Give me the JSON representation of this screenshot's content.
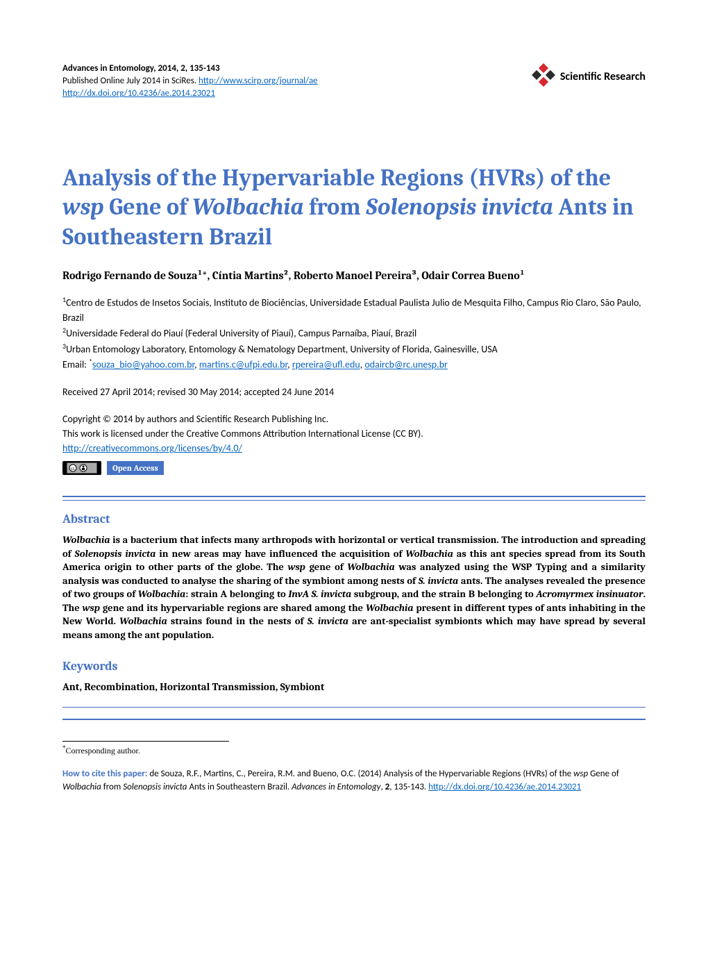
{
  "header": {
    "journal_line": "Advances in Entomology, 2014, 2, 135-143",
    "published_line_prefix": "Published Online July 2014 in SciRes. ",
    "journal_url": "http://www.scirp.org/journal/ae",
    "doi_url": "http://dx.doi.org/10.4236/ae.2014.23021",
    "logo_text": "Scientific Research",
    "logo_color_1": "#d7282f",
    "logo_color_2": "#2b2b2b"
  },
  "title": {
    "parts": [
      {
        "text": "Analysis of the Hypervariable Regions (HVRs) of the ",
        "italic": false
      },
      {
        "text": "wsp",
        "italic": true
      },
      {
        "text": " Gene of ",
        "italic": false
      },
      {
        "text": "Wolbachia",
        "italic": true
      },
      {
        "text": " from ",
        "italic": false
      },
      {
        "text": "Solenopsis invicta",
        "italic": true
      },
      {
        "text": " Ants in Southeastern Brazil",
        "italic": false
      }
    ],
    "color": "#4472c4",
    "fontsize": 34
  },
  "authors": "Rodrigo Fernando de Souza¹*, Cíntia Martins², Roberto Manoel Pereira³, Odair Correa Bueno¹",
  "affiliations": [
    {
      "sup": "1",
      "text": "Centro de Estudos de Insetos Sociais, Instituto de Biociências, Universidade Estadual Paulista Julio de Mesquita Filho, Campus Rio Claro, São Paulo, Brazil"
    },
    {
      "sup": "2",
      "text": "Universidade Federal do Piauí (Federal University of Piauí), Campus Parnaíba, Piauí, Brazil"
    },
    {
      "sup": "3",
      "text": "Urban Entomology Laboratory, Entomology & Nematology Department, University of Florida, Gainesville, USA"
    }
  ],
  "email": {
    "label": "Email: ",
    "sup": "*",
    "addresses": [
      "souza_bio@yahoo.com.br",
      "martins.c@ufpi.edu.br",
      "rpereira@ufl.edu",
      "odaircb@rc.unesp.br"
    ]
  },
  "dates": "Received 27 April 2014; revised 30 May 2014; accepted 24 June 2014",
  "copyright": {
    "line1": "Copyright © 2014 by authors and Scientific Research Publishing Inc.",
    "line2": "This work is licensed under the Creative Commons Attribution International License (CC BY).",
    "license_url": "http://creativecommons.org/licenses/by/4.0/"
  },
  "badges": {
    "cc": "CC  ⓘ",
    "open_access": "Open Access"
  },
  "abstract": {
    "heading": "Abstract",
    "text_parts": [
      {
        "text": "Wolbachia",
        "italic": true
      },
      {
        "text": " is a bacterium that infects many arthropods with horizontal or vertical transmission. The introduction and spreading of "
      },
      {
        "text": "Solenopsis invicta",
        "italic": true
      },
      {
        "text": " in new areas may have influenced the acquisition of "
      },
      {
        "text": "Wolbachia",
        "italic": true
      },
      {
        "text": " as this ant species spread from its South America origin to other parts of the globe. The "
      },
      {
        "text": "wsp",
        "italic": true
      },
      {
        "text": " gene of "
      },
      {
        "text": "Wolbachia",
        "italic": true
      },
      {
        "text": " was analyzed using the WSP Typing and a similarity analysis was conducted to analyse the sharing of the symbiont among nests of "
      },
      {
        "text": "S. invicta",
        "italic": true
      },
      {
        "text": " ants. The analyses revealed the presence of two groups of "
      },
      {
        "text": "Wolbachia",
        "italic": true
      },
      {
        "text": ": strain A belonging to "
      },
      {
        "text": "InvA S. invicta",
        "italic": true
      },
      {
        "text": " subgroup, and the strain B belonging to "
      },
      {
        "text": "Acromyrmex insinuator",
        "italic": true
      },
      {
        "text": ". The "
      },
      {
        "text": "wsp",
        "italic": true
      },
      {
        "text": " gene and its hypervariable regions are shared among the "
      },
      {
        "text": "Wolbachia",
        "italic": true
      },
      {
        "text": " present in different types of ants inhabiting in the New World. "
      },
      {
        "text": "Wolbachia",
        "italic": true
      },
      {
        "text": " strains found in the nests of "
      },
      {
        "text": "S. invicta",
        "italic": true
      },
      {
        "text": " are ant-specialist symbionts which may have spread by several means among the ant population."
      }
    ]
  },
  "keywords": {
    "heading": "Keywords",
    "text": "Ant, Recombination, Horizontal Transmission, Symbiont"
  },
  "footnote": "Corresponding author.",
  "citation": {
    "label": "How to cite this paper:",
    "text_parts": [
      {
        "text": " de Souza, R.F., Martins, C., Pereira, R.M. and Bueno, O.C. (2014) Analysis of the Hypervariable Regions (HVRs) of the "
      },
      {
        "text": "wsp",
        "italic": true
      },
      {
        "text": " Gene of "
      },
      {
        "text": "Wolbachia",
        "italic": true
      },
      {
        "text": " from "
      },
      {
        "text": "Solenopsis invicta",
        "italic": true
      },
      {
        "text": " Ants in Southeastern Brazil. "
      },
      {
        "text": "Advances in Entomology",
        "italic": true
      },
      {
        "text": ", "
      },
      {
        "text": "2",
        "bold": true
      },
      {
        "text": ", 135-143. "
      }
    ],
    "doi_url": "http://dx.doi.org/10.4236/ae.2014.23021"
  },
  "colors": {
    "accent": "#4472c4",
    "link": "#0563c1",
    "text": "#000000",
    "background": "#ffffff"
  }
}
